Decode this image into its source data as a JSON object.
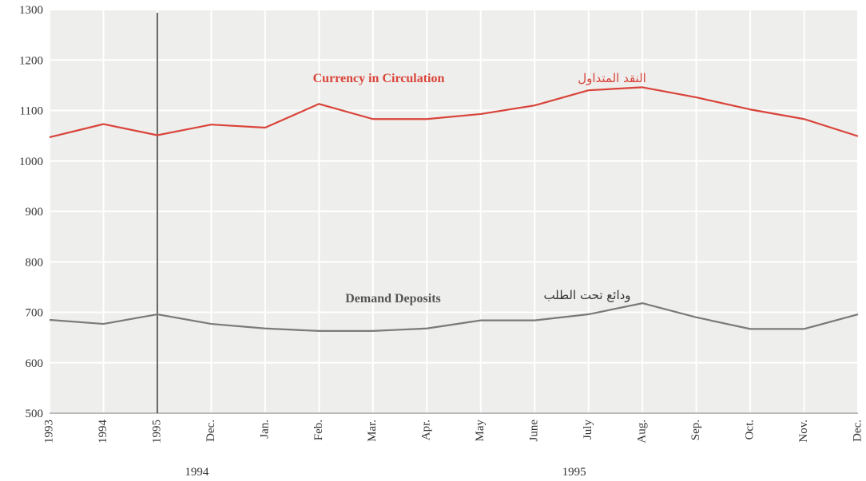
{
  "chart_data": {
    "type": "line",
    "categories": [
      "1993",
      "1994",
      "1995",
      "Dec.",
      "Jan.",
      "Feb.",
      "Mar.",
      "Apr.",
      "May",
      "June",
      "July",
      "Aug.",
      "Sep.",
      "Oct.",
      "Nov.",
      "Dec."
    ],
    "group_labels": [
      {
        "label": "1994",
        "category_index": 3
      },
      {
        "label": "1995",
        "category_index": 10
      }
    ],
    "divider_after_category": "1995",
    "yticks": [
      500,
      600,
      700,
      800,
      900,
      1000,
      1100,
      1200,
      1300
    ],
    "ylim": [
      500,
      1300
    ],
    "grid": true,
    "series": [
      {
        "name": "Currency in Circulation",
        "name_ar": "النقد المتداول",
        "color": "#d9443a",
        "values": [
          1047,
          1073,
          1051,
          1072,
          1066,
          1113,
          1083,
          1083,
          1093,
          1110,
          1140,
          1146,
          1126,
          1102,
          1083,
          1049
        ]
      },
      {
        "name": "Demand Deposits",
        "name_ar": "ودائع تحت الطلب",
        "color": "#7a7a7a",
        "values": [
          685,
          677,
          696,
          677,
          668,
          663,
          663,
          668,
          684,
          684,
          696,
          718,
          690,
          667,
          667,
          696
        ]
      }
    ]
  }
}
